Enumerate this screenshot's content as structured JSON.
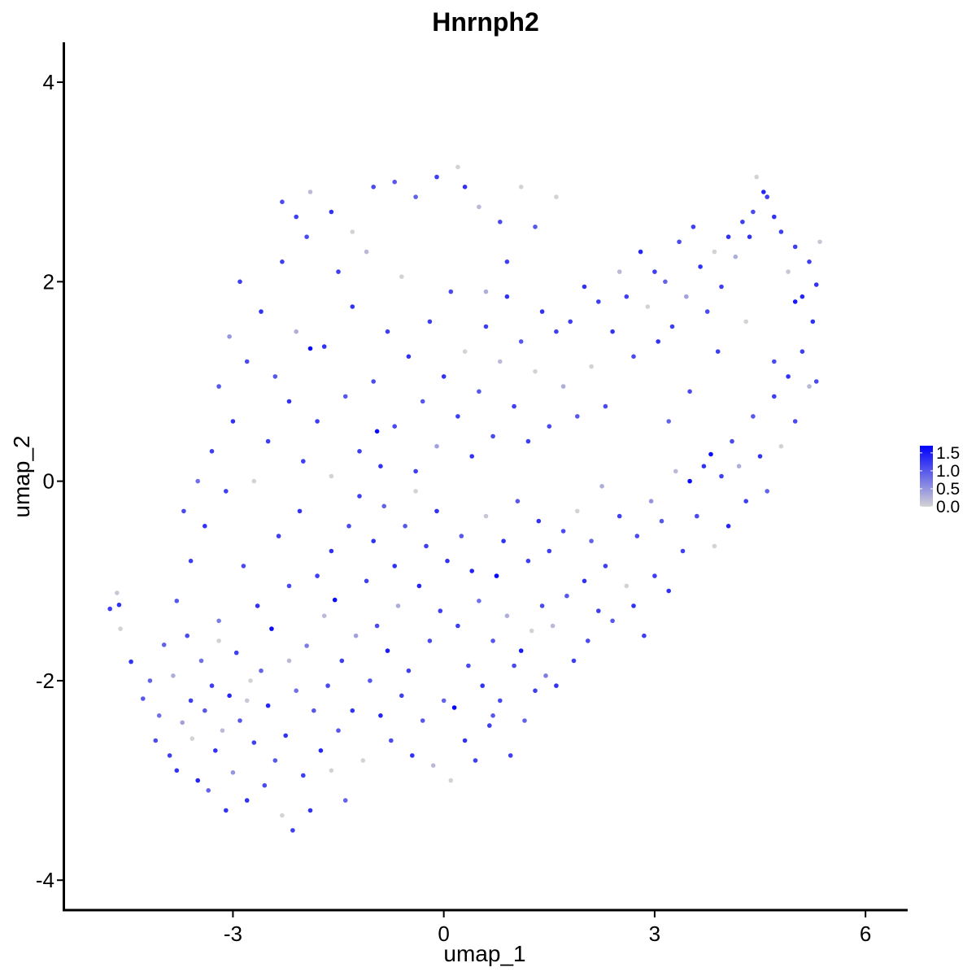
{
  "chart_data": {
    "type": "scatter",
    "title": "Hnrnph2",
    "xlabel": "umap_1",
    "ylabel": "umap_2",
    "xlim": [
      -5.4,
      6.6
    ],
    "ylim": [
      -4.3,
      4.4
    ],
    "x_ticks": [
      {
        "value": -3,
        "label": "-3"
      },
      {
        "value": 0,
        "label": "0"
      },
      {
        "value": 3,
        "label": "3"
      },
      {
        "value": 6,
        "label": "6"
      }
    ],
    "y_ticks": [
      {
        "value": 4,
        "label": "4"
      },
      {
        "value": 2,
        "label": "2"
      },
      {
        "value": 0,
        "label": "0"
      },
      {
        "value": -2,
        "label": "-2"
      },
      {
        "value": -4,
        "label": "-4"
      }
    ],
    "grid": false,
    "legend": {
      "placement": "right",
      "type": "colorbar",
      "min": 0.0,
      "max": 1.7,
      "ticks": [
        {
          "value": 1.5,
          "label": "1.5"
        },
        {
          "value": 1.0,
          "label": "1.0"
        },
        {
          "value": 0.5,
          "label": "0.5"
        },
        {
          "value": 0.0,
          "label": "0.0"
        }
      ],
      "low_color": "#d3d3d3",
      "high_color": "#0000ff"
    },
    "point_encoding": "each point is [umap_1, umap_2, expression]",
    "points": [
      [
        -4.75,
        -1.28,
        1.2
      ],
      [
        -4.62,
        -1.24,
        1.3
      ],
      [
        -4.65,
        -1.12,
        0.1
      ],
      [
        -4.6,
        -1.48,
        0.0
      ],
      [
        -4.45,
        -1.81,
        1.3
      ],
      [
        -4.28,
        -2.18,
        1.0
      ],
      [
        -4.18,
        -2.0,
        0.9
      ],
      [
        -4.1,
        -2.6,
        1.1
      ],
      [
        -4.05,
        -2.35,
        0.8
      ],
      [
        -3.98,
        -1.64,
        0.9
      ],
      [
        -3.9,
        -2.75,
        1.2
      ],
      [
        -3.85,
        -1.95,
        0.3
      ],
      [
        -3.8,
        -2.9,
        1.3
      ],
      [
        -3.72,
        -2.42,
        0.4
      ],
      [
        -3.65,
        -1.55,
        1.1
      ],
      [
        -3.6,
        -2.2,
        1.2
      ],
      [
        -3.58,
        -2.58,
        0.0
      ],
      [
        -3.5,
        -3.0,
        1.4
      ],
      [
        -3.45,
        -1.8,
        0.8
      ],
      [
        -3.4,
        -2.3,
        1.0
      ],
      [
        -3.35,
        -3.1,
        0.9
      ],
      [
        -3.3,
        -2.05,
        1.2
      ],
      [
        -3.25,
        -2.7,
        1.3
      ],
      [
        -3.2,
        -1.4,
        0.7
      ],
      [
        -3.15,
        -2.5,
        0.2
      ],
      [
        -3.1,
        -3.3,
        1.3
      ],
      [
        -3.05,
        -2.15,
        1.4
      ],
      [
        -3.0,
        -2.92,
        0.5
      ],
      [
        -2.95,
        -1.72,
        1.2
      ],
      [
        -2.9,
        -2.4,
        1.0
      ],
      [
        -2.85,
        -0.85,
        1.1
      ],
      [
        -2.8,
        -3.2,
        1.3
      ],
      [
        -2.75,
        -2.0,
        0.0
      ],
      [
        -2.7,
        -2.62,
        1.2
      ],
      [
        -2.65,
        -1.25,
        1.3
      ],
      [
        -2.6,
        -1.9,
        0.9
      ],
      [
        -2.55,
        -3.05,
        1.1
      ],
      [
        -2.5,
        -2.25,
        1.4
      ],
      [
        -2.45,
        -1.48,
        1.6
      ],
      [
        -2.4,
        -2.8,
        1.0
      ],
      [
        -2.35,
        -0.55,
        1.2
      ],
      [
        -2.3,
        -3.35,
        0.0
      ],
      [
        -2.25,
        -2.55,
        1.3
      ],
      [
        -2.2,
        -1.05,
        1.1
      ],
      [
        -2.15,
        -3.5,
        1.2
      ],
      [
        -2.1,
        -2.1,
        0.8
      ],
      [
        -2.05,
        -0.3,
        1.3
      ],
      [
        -2.0,
        -2.95,
        1.2
      ],
      [
        -1.95,
        -1.65,
        0.7
      ],
      [
        -1.9,
        -3.3,
        1.3
      ],
      [
        -1.85,
        -2.3,
        1.0
      ],
      [
        -1.8,
        -0.95,
        1.2
      ],
      [
        -1.75,
        -2.7,
        1.4
      ],
      [
        -1.7,
        -1.35,
        0.2
      ],
      [
        -1.65,
        -2.05,
        1.1
      ],
      [
        -1.6,
        -0.7,
        1.3
      ],
      [
        -1.55,
        -1.19,
        1.6
      ],
      [
        -1.5,
        -2.5,
        1.0
      ],
      [
        -1.45,
        -1.8,
        1.2
      ],
      [
        -1.4,
        -3.2,
        0.9
      ],
      [
        -1.35,
        -0.45,
        1.1
      ],
      [
        -1.3,
        -2.3,
        1.3
      ],
      [
        -1.25,
        -1.55,
        0.4
      ],
      [
        -1.2,
        -0.15,
        1.2
      ],
      [
        -1.15,
        -2.8,
        0.0
      ],
      [
        -1.1,
        -1.0,
        1.2
      ],
      [
        -1.05,
        -2.0,
        1.0
      ],
      [
        -1.0,
        -0.6,
        1.3
      ],
      [
        -0.95,
        -1.45,
        1.1
      ],
      [
        -0.9,
        -2.35,
        1.4
      ],
      [
        -0.85,
        -0.25,
        0.9
      ],
      [
        -0.8,
        -1.7,
        1.5
      ],
      [
        -0.75,
        -2.6,
        1.1
      ],
      [
        -0.7,
        -0.85,
        1.3
      ],
      [
        -0.65,
        -1.25,
        0.3
      ],
      [
        -0.6,
        -2.15,
        1.2
      ],
      [
        -0.55,
        -0.45,
        1.0
      ],
      [
        -0.5,
        -1.9,
        1.2
      ],
      [
        -0.45,
        -2.75,
        1.3
      ],
      [
        -0.4,
        -0.1,
        0.0
      ],
      [
        -0.35,
        -1.05,
        1.4
      ],
      [
        -0.3,
        -2.4,
        1.0
      ],
      [
        -0.25,
        -0.65,
        1.2
      ],
      [
        -0.2,
        -1.6,
        1.1
      ],
      [
        -0.15,
        -2.85,
        0.2
      ],
      [
        -0.1,
        -0.3,
        1.3
      ],
      [
        -0.05,
        -1.3,
        1.2
      ],
      [
        0.0,
        -2.2,
        0.9
      ],
      [
        0.05,
        -0.8,
        1.3
      ],
      [
        0.1,
        -3.0,
        0.0
      ],
      [
        0.15,
        -2.27,
        1.7
      ],
      [
        0.2,
        -1.45,
        1.2
      ],
      [
        0.25,
        -0.55,
        1.0
      ],
      [
        0.3,
        -2.6,
        1.3
      ],
      [
        0.35,
        -1.85,
        1.1
      ],
      [
        0.4,
        -0.9,
        1.4
      ],
      [
        0.45,
        -2.8,
        1.2
      ],
      [
        0.5,
        -1.2,
        0.8
      ],
      [
        0.55,
        -2.05,
        1.3
      ],
      [
        0.6,
        -0.35,
        0.1
      ],
      [
        0.65,
        -2.45,
        1.2
      ],
      [
        0.7,
        -1.6,
        1.0
      ],
      [
        0.75,
        -0.95,
        1.7
      ],
      [
        0.8,
        -2.2,
        1.1
      ],
      [
        0.85,
        -0.6,
        1.3
      ],
      [
        0.9,
        -1.35,
        0.3
      ],
      [
        0.95,
        -2.75,
        1.2
      ],
      [
        1.0,
        -1.85,
        1.1
      ],
      [
        1.05,
        -0.2,
        1.0
      ],
      [
        1.1,
        -1.7,
        1.5
      ],
      [
        1.15,
        -2.4,
        0.9
      ],
      [
        1.2,
        -0.8,
        1.2
      ],
      [
        1.25,
        -1.5,
        0.0
      ],
      [
        1.3,
        -2.1,
        1.2
      ],
      [
        1.35,
        -0.4,
        1.3
      ],
      [
        1.4,
        -1.25,
        1.1
      ],
      [
        1.45,
        -1.95,
        0.7
      ],
      [
        1.5,
        -0.7,
        1.2
      ],
      [
        1.55,
        -1.45,
        0.2
      ],
      [
        1.6,
        -2.05,
        1.3
      ],
      [
        1.7,
        -0.5,
        1.1
      ],
      [
        1.75,
        -1.15,
        1.0
      ],
      [
        1.85,
        -1.8,
        1.2
      ],
      [
        1.9,
        -0.3,
        0.0
      ],
      [
        2.0,
        -1.0,
        1.3
      ],
      [
        2.05,
        -1.6,
        1.1
      ],
      [
        2.1,
        -0.6,
        0.9
      ],
      [
        2.2,
        -1.3,
        1.2
      ],
      [
        2.25,
        -0.05,
        0.3
      ],
      [
        2.3,
        -0.85,
        1.2
      ],
      [
        2.4,
        -1.4,
        1.0
      ],
      [
        2.5,
        -0.35,
        1.2
      ],
      [
        2.6,
        -1.05,
        0.0
      ],
      [
        2.7,
        -1.25,
        1.3
      ],
      [
        2.75,
        -0.55,
        1.1
      ],
      [
        2.85,
        -1.55,
        1.2
      ],
      [
        2.95,
        -0.2,
        0.5
      ],
      [
        3.0,
        -0.95,
        1.2
      ],
      [
        3.1,
        -0.4,
        1.0
      ],
      [
        3.2,
        -1.1,
        1.3
      ],
      [
        3.3,
        0.1,
        0.2
      ],
      [
        3.4,
        -0.7,
        1.2
      ],
      [
        3.5,
        0.0,
        1.6
      ],
      [
        3.6,
        -0.35,
        1.1
      ],
      [
        3.7,
        0.15,
        1.3
      ],
      [
        3.8,
        0.27,
        1.6
      ],
      [
        3.85,
        -0.65,
        0.0
      ],
      [
        3.95,
        0.05,
        1.2
      ],
      [
        4.05,
        -0.45,
        1.4
      ],
      [
        4.1,
        0.4,
        1.1
      ],
      [
        4.2,
        0.15,
        0.3
      ],
      [
        4.3,
        -0.2,
        1.2
      ],
      [
        4.4,
        0.65,
        1.0
      ],
      [
        4.5,
        0.25,
        1.3
      ],
      [
        4.6,
        -0.1,
        0.9
      ],
      [
        4.7,
        0.85,
        1.2
      ],
      [
        4.8,
        0.35,
        0.0
      ],
      [
        4.9,
        1.05,
        1.3
      ],
      [
        5.0,
        0.6,
        1.1
      ],
      [
        5.1,
        1.3,
        1.2
      ],
      [
        5.2,
        0.95,
        0.2
      ],
      [
        5.25,
        1.6,
        1.3
      ],
      [
        5.3,
        1.0,
        1.1
      ],
      [
        5.35,
        2.4,
        0.1
      ],
      [
        5.3,
        1.97,
        1.3
      ],
      [
        5.2,
        2.2,
        1.2
      ],
      [
        5.1,
        1.85,
        1.4
      ],
      [
        5.0,
        1.8,
        1.5
      ],
      [
        5.0,
        2.35,
        1.2
      ],
      [
        4.9,
        2.1,
        0.1
      ],
      [
        4.8,
        2.5,
        1.2
      ],
      [
        4.7,
        2.65,
        1.3
      ],
      [
        4.6,
        2.85,
        1.2
      ],
      [
        4.55,
        2.9,
        1.4
      ],
      [
        4.45,
        3.05,
        0.0
      ],
      [
        4.4,
        2.7,
        1.1
      ],
      [
        4.35,
        2.45,
        1.3
      ],
      [
        4.25,
        2.6,
        1.2
      ],
      [
        4.15,
        2.25,
        0.3
      ],
      [
        4.05,
        2.45,
        1.3
      ],
      [
        3.95,
        1.95,
        1.2
      ],
      [
        3.85,
        2.3,
        0.0
      ],
      [
        3.75,
        1.7,
        1.1
      ],
      [
        3.65,
        2.15,
        1.3
      ],
      [
        3.55,
        2.55,
        1.2
      ],
      [
        3.45,
        1.85,
        0.4
      ],
      [
        3.35,
        2.4,
        1.1
      ],
      [
        3.25,
        1.55,
        1.2
      ],
      [
        3.15,
        2.0,
        0.9
      ],
      [
        3.05,
        1.4,
        1.3
      ],
      [
        3.0,
        2.1,
        1.2
      ],
      [
        2.9,
        1.75,
        0.0
      ],
      [
        2.8,
        2.3,
        1.4
      ],
      [
        2.7,
        1.25,
        1.1
      ],
      [
        2.6,
        1.85,
        1.2
      ],
      [
        2.5,
        2.1,
        0.2
      ],
      [
        2.4,
        1.5,
        1.3
      ],
      [
        2.3,
        0.75,
        1.1
      ],
      [
        2.2,
        1.8,
        1.2
      ],
      [
        2.1,
        1.15,
        0.0
      ],
      [
        2.0,
        1.95,
        1.3
      ],
      [
        1.9,
        0.65,
        1.0
      ],
      [
        1.8,
        1.6,
        1.2
      ],
      [
        1.7,
        0.95,
        0.3
      ],
      [
        1.6,
        1.5,
        1.2
      ],
      [
        1.5,
        0.55,
        1.1
      ],
      [
        1.4,
        1.7,
        1.3
      ],
      [
        1.3,
        1.1,
        0.0
      ],
      [
        1.2,
        0.4,
        1.2
      ],
      [
        1.1,
        1.4,
        1.0
      ],
      [
        1.0,
        0.75,
        1.2
      ],
      [
        0.9,
        1.85,
        1.3
      ],
      [
        0.8,
        1.2,
        0.2
      ],
      [
        0.7,
        0.45,
        1.1
      ],
      [
        0.6,
        1.55,
        1.2
      ],
      [
        0.5,
        0.9,
        1.0
      ],
      [
        0.4,
        0.25,
        1.3
      ],
      [
        0.3,
        1.3,
        0.0
      ],
      [
        0.2,
        0.65,
        1.2
      ],
      [
        0.1,
        1.9,
        1.1
      ],
      [
        0.0,
        1.05,
        1.3
      ],
      [
        -0.1,
        0.35,
        0.4
      ],
      [
        -0.2,
        1.6,
        1.2
      ],
      [
        -0.3,
        0.8,
        1.0
      ],
      [
        -0.4,
        0.1,
        1.2
      ],
      [
        -0.5,
        1.25,
        1.3
      ],
      [
        -0.6,
        2.05,
        0.0
      ],
      [
        -0.7,
        0.55,
        1.1
      ],
      [
        -0.8,
        1.5,
        1.2
      ],
      [
        -0.9,
        0.15,
        1.3
      ],
      [
        -0.95,
        0.5,
        1.6
      ],
      [
        -1.0,
        1.0,
        1.1
      ],
      [
        -1.1,
        2.3,
        0.2
      ],
      [
        -1.2,
        0.3,
        1.2
      ],
      [
        -1.3,
        1.75,
        1.3
      ],
      [
        -1.4,
        0.85,
        1.0
      ],
      [
        -1.5,
        2.1,
        1.2
      ],
      [
        -1.6,
        0.05,
        0.0
      ],
      [
        -1.7,
        1.35,
        1.3
      ],
      [
        -1.8,
        0.6,
        1.2
      ],
      [
        -1.9,
        1.33,
        1.6
      ],
      [
        -1.95,
        2.45,
        1.1
      ],
      [
        -2.0,
        0.2,
        1.2
      ],
      [
        -2.1,
        1.5,
        0.3
      ],
      [
        -2.2,
        0.8,
        1.3
      ],
      [
        -2.3,
        2.2,
        1.2
      ],
      [
        -2.4,
        1.05,
        1.0
      ],
      [
        -2.5,
        0.4,
        1.2
      ],
      [
        -2.6,
        1.7,
        1.3
      ],
      [
        -2.7,
        0.0,
        0.0
      ],
      [
        -2.8,
        1.2,
        1.1
      ],
      [
        -2.9,
        2.0,
        1.2
      ],
      [
        -3.0,
        0.6,
        1.3
      ],
      [
        -3.05,
        1.45,
        0.5
      ],
      [
        -3.1,
        -0.1,
        1.2
      ],
      [
        -3.2,
        0.95,
        1.0
      ],
      [
        -3.3,
        0.3,
        1.2
      ],
      [
        -3.4,
        -0.45,
        1.3
      ],
      [
        -3.5,
        0.0,
        0.8
      ],
      [
        -3.6,
        -0.8,
        1.2
      ],
      [
        -3.7,
        -0.3,
        1.1
      ],
      [
        -3.8,
        -1.2,
        1.0
      ],
      [
        -1.0,
        2.95,
        1.1
      ],
      [
        -0.7,
        3.0,
        1.0
      ],
      [
        -0.4,
        2.85,
        0.9
      ],
      [
        -0.1,
        3.05,
        1.2
      ],
      [
        0.2,
        3.15,
        0.0
      ],
      [
        0.3,
        2.95,
        1.3
      ],
      [
        0.5,
        2.75,
        0.2
      ],
      [
        0.8,
        2.6,
        1.1
      ],
      [
        1.1,
        2.95,
        0.0
      ],
      [
        1.3,
        2.55,
        1.0
      ],
      [
        1.6,
        2.85,
        0.0
      ],
      [
        -1.9,
        2.9,
        0.2
      ],
      [
        -2.1,
        2.65,
        1.2
      ],
      [
        -2.3,
        2.8,
        1.1
      ],
      [
        -1.6,
        2.7,
        1.3
      ],
      [
        -1.3,
        2.5,
        0.0
      ],
      [
        0.9,
        2.2,
        1.2
      ],
      [
        0.6,
        1.9,
        0.3
      ],
      [
        4.7,
        1.2,
        1.1
      ],
      [
        4.3,
        1.6,
        0.0
      ],
      [
        3.9,
        1.3,
        1.2
      ],
      [
        3.5,
        0.9,
        1.1
      ],
      [
        3.2,
        0.6,
        0.9
      ],
      [
        -2.8,
        -2.2,
        0.1
      ],
      [
        -3.2,
        -1.6,
        0.0
      ],
      [
        -2.2,
        -1.8,
        0.2
      ],
      [
        -1.6,
        -2.9,
        0.0
      ],
      [
        0.7,
        -2.35,
        1.0
      ]
    ]
  }
}
